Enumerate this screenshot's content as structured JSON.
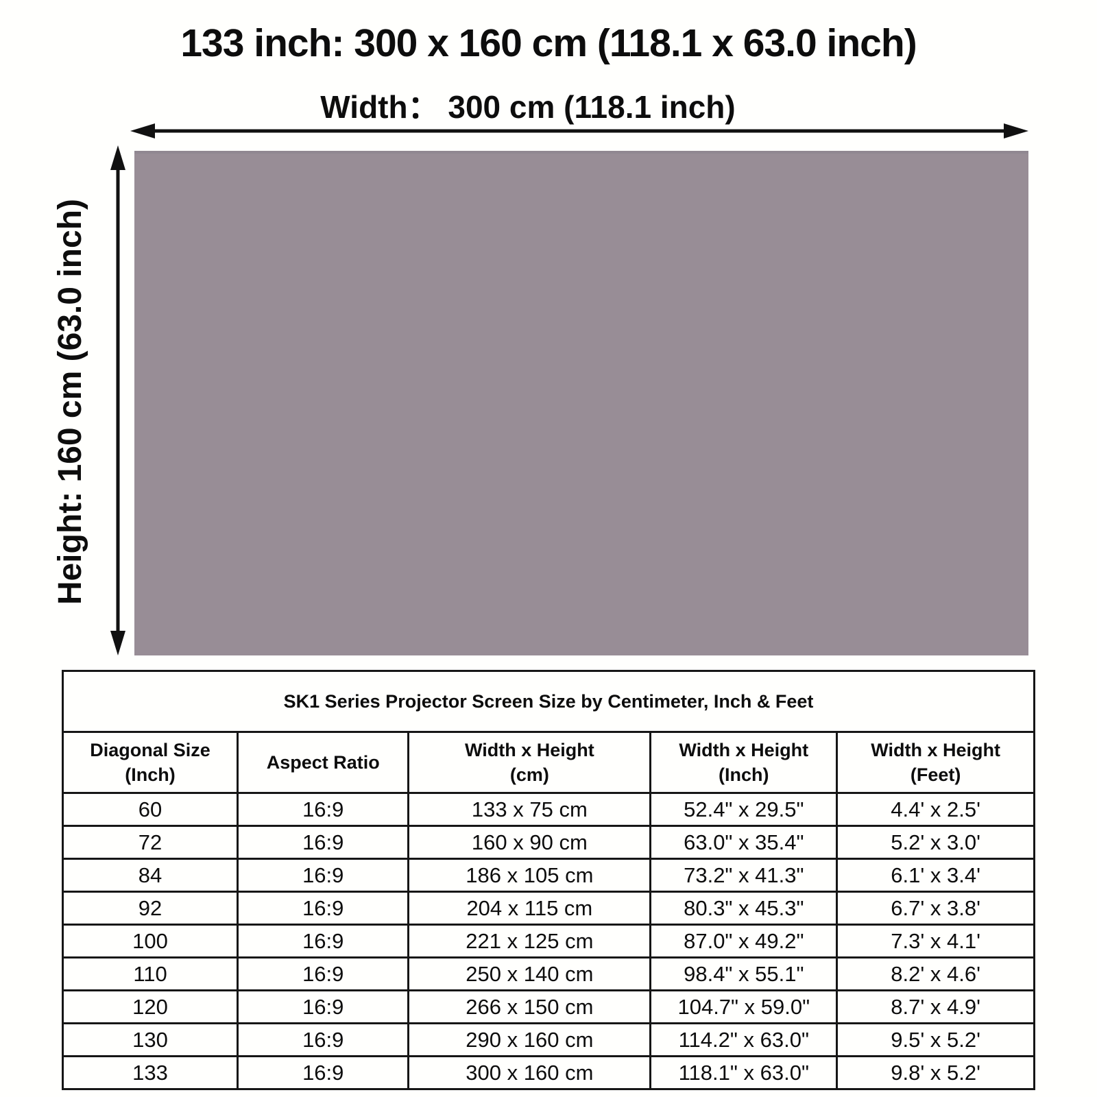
{
  "page": {
    "title": "133 inch: 300 x 160 cm (118.1 x 63.0 inch)"
  },
  "diagram": {
    "width_label": "Width： 300 cm (118.1 inch)",
    "height_label": "Height: 160 cm (63.0 inch)",
    "screen_color": "#988d96",
    "arrow_color": "#111111"
  },
  "table": {
    "title": "SK1 Series Projector Screen Size by Centimeter, Inch & Feet",
    "columns": [
      {
        "label": "Diagonal Size",
        "sub": "(Inch)"
      },
      {
        "label": "Aspect Ratio",
        "sub": ""
      },
      {
        "label": "Width x Height",
        "sub": "(cm)"
      },
      {
        "label": "Width x Height",
        "sub": "(Inch)"
      },
      {
        "label": "Width x Height",
        "sub": "(Feet)"
      }
    ],
    "rows": [
      [
        "60",
        "16:9",
        "133 x 75 cm",
        "52.4\" x 29.5\"",
        "4.4' x 2.5'"
      ],
      [
        "72",
        "16:9",
        "160 x 90 cm",
        "63.0\" x 35.4\"",
        "5.2' x 3.0'"
      ],
      [
        "84",
        "16:9",
        "186 x 105 cm",
        "73.2\" x 41.3\"",
        "6.1' x 3.4'"
      ],
      [
        "92",
        "16:9",
        "204 x 115 cm",
        "80.3\" x 45.3\"",
        "6.7' x 3.8'"
      ],
      [
        "100",
        "16:9",
        "221 x 125 cm",
        "87.0\" x 49.2\"",
        "7.3' x 4.1'"
      ],
      [
        "110",
        "16:9",
        "250 x 140 cm",
        "98.4\" x 55.1\"",
        "8.2' x 4.6'"
      ],
      [
        "120",
        "16:9",
        "266 x 150 cm",
        "104.7\" x 59.0\"",
        "8.7' x 4.9'"
      ],
      [
        "130",
        "16:9",
        "290 x 160 cm",
        "114.2\" x 63.0\"",
        "9.5' x 5.2'"
      ],
      [
        "133",
        "16:9",
        "300 x 160 cm",
        "118.1\" x 63.0\"",
        "9.8' x 5.2'"
      ]
    ]
  }
}
